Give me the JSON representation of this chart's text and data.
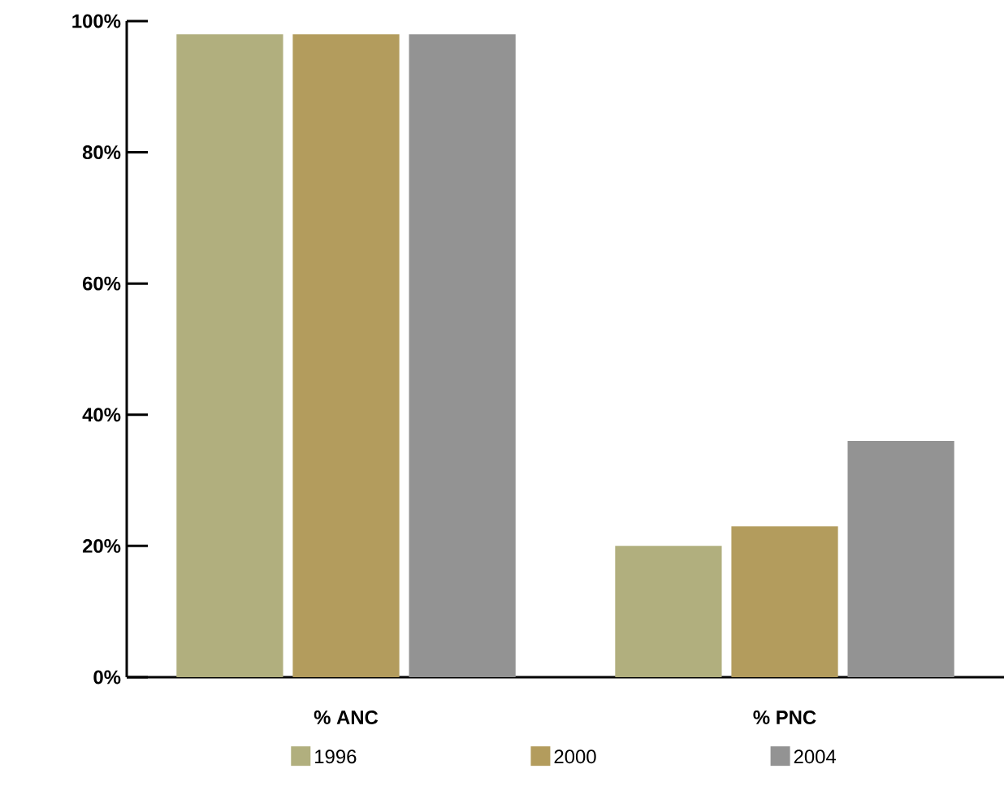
{
  "chart_data": {
    "type": "bar",
    "categories": [
      "% ANC",
      "% PNC"
    ],
    "series": [
      {
        "name": "1996",
        "color": "#b1af7e",
        "values": [
          98,
          20
        ]
      },
      {
        "name": "2000",
        "color": "#b39c5d",
        "values": [
          98,
          23
        ]
      },
      {
        "name": "2004",
        "color": "#939393",
        "values": [
          98,
          36
        ]
      }
    ],
    "ylim": [
      0,
      100
    ],
    "yticks": [
      {
        "value": 0,
        "label": "0%"
      },
      {
        "value": 20,
        "label": "20%"
      },
      {
        "value": 40,
        "label": "40%"
      },
      {
        "value": 60,
        "label": "60%"
      },
      {
        "value": 80,
        "label": "80%"
      },
      {
        "value": 100,
        "label": "100%"
      }
    ],
    "legend": "bottom"
  }
}
